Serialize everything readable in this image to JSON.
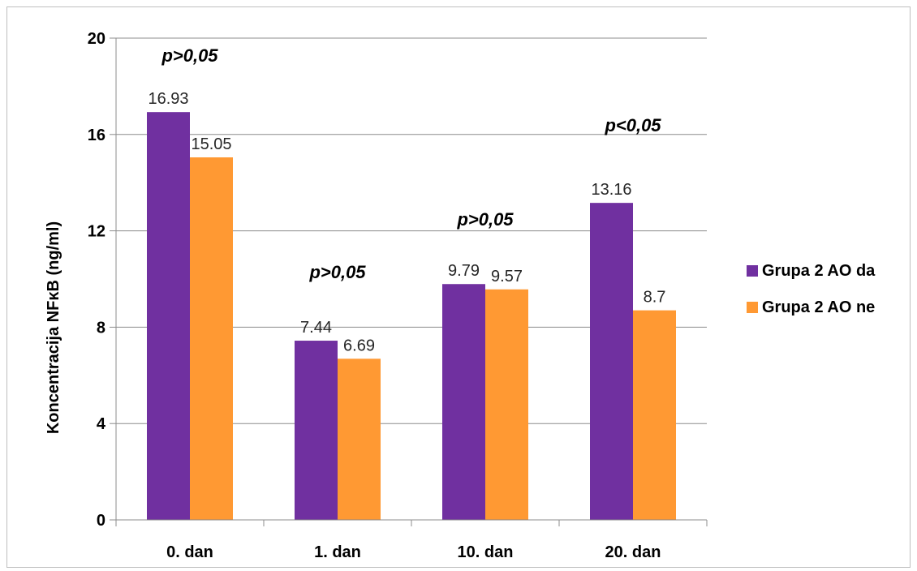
{
  "chart_data": {
    "type": "bar",
    "categories": [
      "0. dan",
      "1. dan",
      "10. dan",
      "20. dan"
    ],
    "series": [
      {
        "name": "Grupa 2 AO da",
        "values": [
          16.93,
          7.44,
          9.79,
          13.16
        ],
        "color": "#7030a0"
      },
      {
        "name": "Grupa 2 AO ne",
        "values": [
          15.05,
          6.69,
          9.57,
          8.7
        ],
        "color": "#ff9933"
      }
    ],
    "data_labels": [
      [
        "16.93",
        "7.44",
        "9.79",
        "13.16"
      ],
      [
        "15.05",
        "6.69",
        "9.57",
        "8.7"
      ]
    ],
    "ylabel": "Koncentracija NFκB (ng/ml)",
    "xlabel": "",
    "ylim": [
      0,
      20
    ],
    "yticks": [
      0,
      4,
      8,
      12,
      16,
      20
    ],
    "grid": true,
    "legend_position": "right",
    "annotations": [
      {
        "text": "p>0,05",
        "category": "0. dan",
        "y": 19.3
      },
      {
        "text": "p>0,05",
        "category": "1. dan",
        "y": 10.3
      },
      {
        "text": "p>0,05",
        "category": "10. dan",
        "y": 12.5
      },
      {
        "text": "p<0,05",
        "category": "20. dan",
        "y": 16.4
      }
    ]
  }
}
